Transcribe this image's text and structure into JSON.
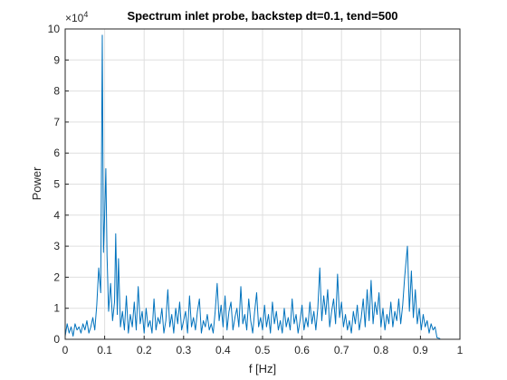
{
  "chart_data": {
    "type": "line",
    "title": "Spectrum inlet probe, backstep dt=0.1, tend=500",
    "x_label": "f [Hz]",
    "y_label": "Power",
    "y_multiplier": "×10",
    "y_multiplier_exponent": "4",
    "xlim": [
      0,
      1
    ],
    "ylim": [
      0,
      10
    ],
    "xticks": [
      0,
      0.1,
      0.2,
      0.3,
      0.4,
      0.5,
      0.6,
      0.7,
      0.8,
      0.9,
      1
    ],
    "yticks": [
      0,
      1,
      2,
      3,
      4,
      5,
      6,
      7,
      8,
      9,
      10
    ],
    "grid": true,
    "x": [
      0,
      0.005,
      0.01,
      0.015,
      0.02,
      0.025,
      0.03,
      0.035,
      0.04,
      0.045,
      0.05,
      0.055,
      0.06,
      0.065,
      0.07,
      0.075,
      0.08,
      0.085,
      0.09,
      0.094,
      0.097,
      0.1,
      0.103,
      0.106,
      0.11,
      0.115,
      0.12,
      0.125,
      0.128,
      0.132,
      0.135,
      0.14,
      0.145,
      0.15,
      0.155,
      0.16,
      0.165,
      0.17,
      0.175,
      0.18,
      0.185,
      0.19,
      0.195,
      0.2,
      0.205,
      0.21,
      0.215,
      0.22,
      0.225,
      0.23,
      0.235,
      0.24,
      0.245,
      0.25,
      0.255,
      0.26,
      0.265,
      0.27,
      0.275,
      0.28,
      0.285,
      0.29,
      0.295,
      0.3,
      0.305,
      0.31,
      0.315,
      0.32,
      0.325,
      0.33,
      0.335,
      0.34,
      0.345,
      0.35,
      0.355,
      0.36,
      0.365,
      0.37,
      0.375,
      0.38,
      0.385,
      0.39,
      0.395,
      0.4,
      0.405,
      0.41,
      0.415,
      0.42,
      0.425,
      0.43,
      0.435,
      0.44,
      0.445,
      0.45,
      0.455,
      0.46,
      0.465,
      0.47,
      0.475,
      0.48,
      0.485,
      0.49,
      0.495,
      0.5,
      0.505,
      0.51,
      0.515,
      0.52,
      0.525,
      0.53,
      0.535,
      0.54,
      0.545,
      0.55,
      0.555,
      0.56,
      0.565,
      0.57,
      0.575,
      0.58,
      0.585,
      0.59,
      0.595,
      0.6,
      0.605,
      0.61,
      0.615,
      0.62,
      0.625,
      0.63,
      0.635,
      0.64,
      0.645,
      0.65,
      0.655,
      0.66,
      0.665,
      0.67,
      0.675,
      0.68,
      0.685,
      0.69,
      0.695,
      0.7,
      0.705,
      0.71,
      0.715,
      0.72,
      0.725,
      0.73,
      0.735,
      0.74,
      0.745,
      0.75,
      0.755,
      0.76,
      0.765,
      0.77,
      0.775,
      0.78,
      0.785,
      0.79,
      0.795,
      0.8,
      0.805,
      0.81,
      0.815,
      0.82,
      0.825,
      0.83,
      0.835,
      0.84,
      0.845,
      0.85,
      0.855,
      0.86,
      0.867,
      0.872,
      0.877,
      0.882,
      0.887,
      0.892,
      0.897,
      0.902,
      0.907,
      0.912,
      0.917,
      0.922,
      0.927,
      0.932,
      0.937,
      0.942,
      0.95
    ],
    "series": [
      {
        "name": "Power",
        "color": "#0072bd",
        "values": [
          0.1,
          0.5,
          0.2,
          0.4,
          0.1,
          0.5,
          0.3,
          0.4,
          0.2,
          0.5,
          0.3,
          0.6,
          0.2,
          0.4,
          0.7,
          0.3,
          1.1,
          2.3,
          1.5,
          9.8,
          2.8,
          4.0,
          5.5,
          2.7,
          0.9,
          1.8,
          0.6,
          1.2,
          3.4,
          0.8,
          2.6,
          0.4,
          0.9,
          0.3,
          1.4,
          0.2,
          0.8,
          0.4,
          1.2,
          0.3,
          1.7,
          0.5,
          0.9,
          0.2,
          1.0,
          0.4,
          0.6,
          0.2,
          1.3,
          0.3,
          0.7,
          0.5,
          1.0,
          0.2,
          0.6,
          1.6,
          0.4,
          0.8,
          0.2,
          1.0,
          0.5,
          1.2,
          0.3,
          0.6,
          0.9,
          0.2,
          1.4,
          0.4,
          0.7,
          0.3,
          0.9,
          1.3,
          0.2,
          0.6,
          0.4,
          0.8,
          0.3,
          0.5,
          0.2,
          0.9,
          1.8,
          0.6,
          1.1,
          0.4,
          1.4,
          0.3,
          0.9,
          1.2,
          0.3,
          0.7,
          1.0,
          0.4,
          1.7,
          0.5,
          0.8,
          0.3,
          1.3,
          0.6,
          0.2,
          0.9,
          1.5,
          0.4,
          0.7,
          0.3,
          1.1,
          0.4,
          0.8,
          0.2,
          1.2,
          0.5,
          0.9,
          0.3,
          0.6,
          0.2,
          1.0,
          0.4,
          0.7,
          0.3,
          1.3,
          0.5,
          0.8,
          0.2,
          0.6,
          1.1,
          0.3,
          0.7,
          0.4,
          1.2,
          0.5,
          0.9,
          0.3,
          1.0,
          2.3,
          0.6,
          1.4,
          0.8,
          1.6,
          0.4,
          0.9,
          1.3,
          0.5,
          2.1,
          0.7,
          1.2,
          0.4,
          0.8,
          0.3,
          0.6,
          0.2,
          0.9,
          0.5,
          1.1,
          0.3,
          0.7,
          1.3,
          0.4,
          1.6,
          0.6,
          1.9,
          0.5,
          1.2,
          0.8,
          1.5,
          0.4,
          1.0,
          0.3,
          0.8,
          0.5,
          1.2,
          0.4,
          0.9,
          0.6,
          1.3,
          0.5,
          1.1,
          2.0,
          3.0,
          0.9,
          2.2,
          0.7,
          1.6,
          0.5,
          1.0,
          0.3,
          0.8,
          0.4,
          0.6,
          0.2,
          0.5,
          0.3,
          0.4,
          0.05,
          0.02
        ]
      }
    ]
  }
}
